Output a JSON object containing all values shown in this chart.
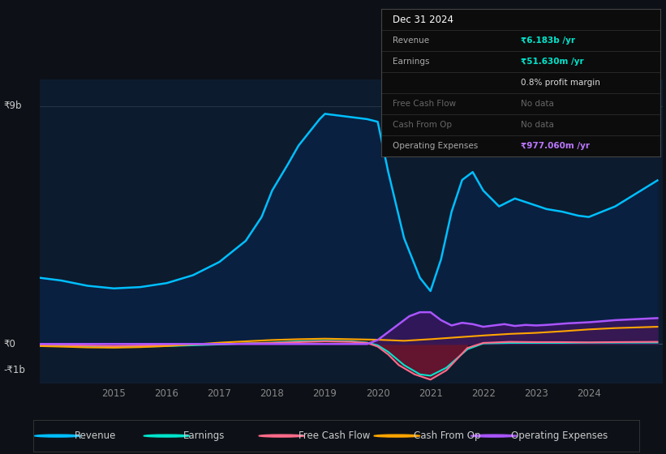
{
  "background_color": "#0d1117",
  "plot_bg_color": "#0d1b2e",
  "y_label_top": "₹9b",
  "y_label_zero": "₹0",
  "y_label_bottom": "-₹1b",
  "x_ticks": [
    2015,
    2016,
    2017,
    2018,
    2019,
    2020,
    2021,
    2022,
    2023,
    2024
  ],
  "ylim": [
    -1.5,
    10.0
  ],
  "xlim": [
    2013.6,
    2025.4
  ],
  "legend_items": [
    {
      "label": "Revenue",
      "color": "#00bfff"
    },
    {
      "label": "Earnings",
      "color": "#00e5cc"
    },
    {
      "label": "Free Cash Flow",
      "color": "#ff6b8a"
    },
    {
      "label": "Cash From Op",
      "color": "#ffa500"
    },
    {
      "label": "Operating Expenses",
      "color": "#aa55ff"
    }
  ],
  "tooltip": {
    "date": "Dec 31 2024",
    "revenue": "₹6.183b /yr",
    "earnings": "₹51.630m /yr",
    "profit_margin": "0.8% profit margin",
    "free_cash_flow": "No data",
    "cash_from_op": "No data",
    "operating_expenses": "₹977.060m /yr",
    "revenue_color": "#00e5cc",
    "earnings_color": "#00e5cc",
    "op_exp_color": "#bb77ff"
  },
  "revenue": {
    "x": [
      2013.6,
      2014.0,
      2014.5,
      2015.0,
      2015.5,
      2016.0,
      2016.5,
      2017.0,
      2017.5,
      2017.8,
      2018.0,
      2018.3,
      2018.5,
      2018.7,
      2018.9,
      2019.0,
      2019.2,
      2019.4,
      2019.6,
      2019.8,
      2020.0,
      2020.2,
      2020.5,
      2020.8,
      2021.0,
      2021.2,
      2021.4,
      2021.6,
      2021.8,
      2022.0,
      2022.3,
      2022.6,
      2022.9,
      2023.2,
      2023.5,
      2023.8,
      2024.0,
      2024.5,
      2025.3
    ],
    "y": [
      2.5,
      2.4,
      2.2,
      2.1,
      2.15,
      2.3,
      2.6,
      3.1,
      3.9,
      4.8,
      5.8,
      6.8,
      7.5,
      8.0,
      8.5,
      8.7,
      8.65,
      8.6,
      8.55,
      8.5,
      8.4,
      6.5,
      4.0,
      2.5,
      2.0,
      3.2,
      5.0,
      6.2,
      6.5,
      5.8,
      5.2,
      5.5,
      5.3,
      5.1,
      5.0,
      4.85,
      4.8,
      5.2,
      6.183
    ]
  },
  "earnings": {
    "x": [
      2013.6,
      2014.0,
      2014.5,
      2015.0,
      2015.5,
      2016.0,
      2016.5,
      2017.0,
      2017.5,
      2018.0,
      2018.5,
      2019.0,
      2019.5,
      2019.8,
      2020.0,
      2020.2,
      2020.5,
      2020.8,
      2021.0,
      2021.3,
      2021.7,
      2022.0,
      2022.5,
      2023.0,
      2023.5,
      2024.0,
      2024.5,
      2025.3
    ],
    "y": [
      -0.05,
      -0.07,
      -0.1,
      -0.12,
      -0.1,
      -0.08,
      -0.05,
      -0.02,
      0.02,
      0.05,
      0.1,
      0.12,
      0.1,
      0.05,
      -0.05,
      -0.3,
      -0.8,
      -1.15,
      -1.2,
      -0.9,
      -0.2,
      0.02,
      0.04,
      0.04,
      0.04,
      0.05,
      0.05,
      0.052
    ]
  },
  "free_cash_flow": {
    "x": [
      2013.6,
      2014.0,
      2014.5,
      2015.0,
      2015.5,
      2016.0,
      2016.5,
      2017.0,
      2017.5,
      2018.0,
      2018.5,
      2019.0,
      2019.5,
      2019.8,
      2020.0,
      2020.2,
      2020.4,
      2020.7,
      2021.0,
      2021.3,
      2021.7,
      2022.0,
      2022.5,
      2023.0,
      2023.5,
      2024.0,
      2024.5,
      2025.3
    ],
    "y": [
      -0.02,
      -0.04,
      -0.06,
      -0.08,
      -0.06,
      -0.04,
      -0.02,
      0.0,
      0.02,
      0.04,
      0.07,
      0.1,
      0.08,
      0.04,
      -0.1,
      -0.4,
      -0.8,
      -1.15,
      -1.35,
      -1.0,
      -0.15,
      0.04,
      0.08,
      0.07,
      0.07,
      0.06,
      0.07,
      0.08
    ]
  },
  "cash_from_op": {
    "x": [
      2013.6,
      2014.0,
      2014.5,
      2015.0,
      2015.5,
      2016.0,
      2016.5,
      2017.0,
      2017.5,
      2018.0,
      2018.5,
      2019.0,
      2019.5,
      2020.0,
      2020.5,
      2021.0,
      2021.5,
      2022.0,
      2022.5,
      2023.0,
      2023.5,
      2024.0,
      2024.5,
      2025.3
    ],
    "y": [
      -0.08,
      -0.1,
      -0.13,
      -0.14,
      -0.12,
      -0.08,
      -0.02,
      0.05,
      0.1,
      0.15,
      0.18,
      0.2,
      0.18,
      0.16,
      0.12,
      0.18,
      0.25,
      0.32,
      0.38,
      0.42,
      0.48,
      0.55,
      0.6,
      0.65
    ]
  },
  "op_expenses": {
    "x": [
      2013.6,
      2019.8,
      2020.0,
      2020.2,
      2020.4,
      2020.6,
      2020.8,
      2021.0,
      2021.2,
      2021.4,
      2021.6,
      2021.8,
      2022.0,
      2022.2,
      2022.4,
      2022.6,
      2022.8,
      2023.0,
      2023.2,
      2023.4,
      2023.6,
      2023.8,
      2024.0,
      2024.2,
      2024.5,
      2025.3
    ],
    "y": [
      0.0,
      0.0,
      0.15,
      0.45,
      0.75,
      1.05,
      1.2,
      1.2,
      0.9,
      0.7,
      0.8,
      0.75,
      0.65,
      0.7,
      0.75,
      0.68,
      0.72,
      0.7,
      0.72,
      0.75,
      0.78,
      0.8,
      0.82,
      0.85,
      0.9,
      0.977
    ]
  }
}
